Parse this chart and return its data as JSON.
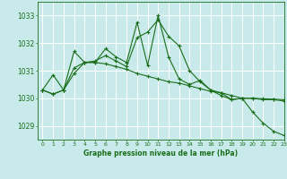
{
  "background_color": "#c8eaea",
  "grid_color": "#ffffff",
  "line_color": "#1a6e1a",
  "title": "Graphe pression niveau de la mer (hPa)",
  "xlim": [
    -0.5,
    23
  ],
  "ylim": [
    1028.5,
    1033.5
  ],
  "yticks": [
    1029,
    1030,
    1031,
    1032,
    1033
  ],
  "xticks": [
    0,
    1,
    2,
    3,
    4,
    5,
    6,
    7,
    8,
    9,
    10,
    11,
    12,
    13,
    14,
    15,
    16,
    17,
    18,
    19,
    20,
    21,
    22,
    23
  ],
  "series": [
    [
      1030.3,
      1030.15,
      1030.3,
      1031.7,
      1031.3,
      1031.3,
      1031.8,
      1031.5,
      1031.3,
      1032.75,
      1031.2,
      1033.0,
      1031.5,
      1030.7,
      1030.5,
      1030.65,
      1030.3,
      1030.2,
      1029.95,
      1030.0,
      1029.5,
      1029.1,
      1028.8,
      1028.65
    ],
    [
      1030.3,
      1030.85,
      1030.3,
      1031.1,
      1031.3,
      1031.35,
      1031.55,
      1031.35,
      1031.15,
      1032.2,
      1032.4,
      1032.85,
      1032.25,
      1031.9,
      1031.0,
      1030.6,
      1030.3,
      1030.1,
      1029.95,
      1030.0,
      1030.0,
      1029.95,
      1029.95,
      1029.9
    ],
    [
      1030.3,
      1030.15,
      1030.3,
      1030.9,
      1031.3,
      1031.3,
      1031.25,
      1031.15,
      1031.05,
      1030.9,
      1030.8,
      1030.7,
      1030.6,
      1030.55,
      1030.45,
      1030.35,
      1030.25,
      1030.2,
      1030.1,
      1030.0,
      1030.0,
      1029.98,
      1029.97,
      1029.95
    ]
  ]
}
